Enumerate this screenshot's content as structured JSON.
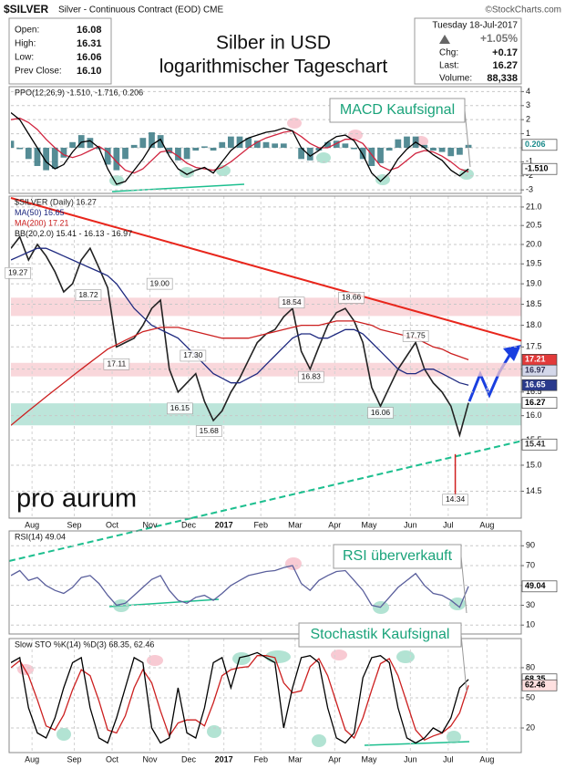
{
  "header": {
    "ticker": "$SILVER",
    "description": "Silver - Continuous Contract (EOD) CME",
    "source": "©StockCharts.com",
    "title": [
      "Silber in USD",
      "logarithmischer Tageschart"
    ],
    "fields": [
      {
        "label": "Open:",
        "value": "16.08"
      },
      {
        "label": "High:",
        "value": "16.31"
      },
      {
        "label": "Low:",
        "value": "16.06"
      },
      {
        "label": "Prev Close:",
        "value": "16.10"
      }
    ],
    "date": "Tuesday 18-Jul-2017",
    "change_pct": "+1.05%",
    "stats": [
      {
        "label": "Chg:",
        "value": "+0.17"
      },
      {
        "label": "Last:",
        "value": "16.27"
      },
      {
        "label": "Volume:",
        "value": "88,338"
      }
    ]
  },
  "chart_data": [
    {
      "type": "line",
      "legend": "PPO(12,26,9) -1.510, -1.716, 0.206",
      "annotation": "MACD Kaufsignal",
      "xlim": [
        0,
        58
      ],
      "ylim": [
        -3.25,
        4.35
      ],
      "yticks": [
        4,
        3,
        2,
        1,
        0,
        -1,
        -2,
        -3
      ],
      "grid": true,
      "series": [
        {
          "style": "bar",
          "color": "#2b6f7a",
          "values": [
            0.5,
            -0.1,
            -0.8,
            -1.3,
            -1.6,
            -1.5,
            -0.7,
            0.4,
            0.9,
            0.7,
            -0.1,
            -1.2,
            -1.6,
            -0.8,
            0.2,
            0.7,
            1.1,
            0.9,
            -0.4,
            -0.9,
            -0.8,
            -0.2,
            0.1,
            -0.2,
            0.4,
            0.8,
            0.8,
            0.7,
            0.5,
            0.4,
            0.3,
            0.3,
            0.0,
            -0.8,
            -0.9,
            -0.2,
            0.4,
            0.5,
            0.3,
            -0.1,
            -0.8,
            -1.3,
            -1.1,
            -0.2,
            0.6,
            0.8,
            0.8,
            0.2,
            -0.2,
            -0.3,
            -0.6,
            -0.5,
            0.206
          ]
        },
        {
          "style": "line",
          "color": "#d0243f",
          "values": [
            2.0,
            2.1,
            1.8,
            1.3,
            0.6,
            0.0,
            -0.5,
            -0.7,
            -0.5,
            -0.2,
            0.1,
            -0.3,
            -1.0,
            -1.6,
            -1.8,
            -1.5,
            -0.9,
            -0.3,
            -0.2,
            -0.6,
            -1.1,
            -1.4,
            -1.5,
            -1.6,
            -1.4,
            -1.0,
            -0.5,
            0.0,
            0.4,
            0.7,
            0.9,
            1.1,
            1.2,
            0.8,
            0.3,
            0.0,
            0.0,
            0.3,
            0.6,
            0.6,
            0.3,
            -0.5,
            -1.3,
            -1.6,
            -1.4,
            -0.9,
            -0.4,
            -0.2,
            -0.3,
            -0.6,
            -1.0,
            -1.5,
            -1.716
          ]
        },
        {
          "style": "line",
          "color": "#000000",
          "values": [
            2.5,
            2.0,
            1.0,
            0,
            -1.0,
            -1.5,
            -1.2,
            -0.3,
            0.4,
            0.5,
            0,
            -1.5,
            -2.6,
            -2.4,
            -1.6,
            -0.8,
            0.2,
            0.6,
            -0.6,
            -1.5,
            -1.9,
            -1.6,
            -1.4,
            -1.8,
            -1.0,
            -0.2,
            0.3,
            0.7,
            0.9,
            1.1,
            1.2,
            1.4,
            1.2,
            0.0,
            -0.6,
            -0.2,
            0.4,
            0.8,
            0.9,
            0.5,
            -0.5,
            -1.8,
            -2.4,
            -1.8,
            -0.8,
            -0.1,
            0.4,
            0.0,
            -0.5,
            -0.9,
            -1.6,
            -2.0,
            -1.51
          ]
        }
      ],
      "tags": [
        {
          "value": 0.206,
          "color": "#ffffff",
          "text_color": "#1a8a8a"
        },
        {
          "value": -1.51,
          "label": "-1.510",
          "color": "#ffffff",
          "text_color": "#000000"
        }
      ]
    },
    {
      "type": "line",
      "log_scale": true,
      "logo": "pro aurum",
      "bands_label": "BB(20,2.0) 15.41 - 16.13 - 16.97",
      "xlim": [
        0,
        58
      ],
      "ylim": [
        14.0,
        21.3
      ],
      "grid": true,
      "yticks": [
        {
          "value": 21,
          "label": "21.0"
        },
        20.5,
        {
          "value": 20,
          "label": "20.0"
        },
        19.5,
        {
          "value": 19,
          "label": "19.0"
        },
        18.5,
        {
          "value": 18,
          "label": "18.0"
        },
        17.5,
        {
          "value": 17,
          "label": "17.0"
        },
        16.5,
        {
          "value": 16,
          "label": "16.0"
        },
        15.5,
        {
          "value": 15,
          "label": "15.0"
        },
        14.5
      ],
      "xticks": [
        {
          "value": 2.4,
          "label": "Aug"
        },
        {
          "value": 7.2,
          "label": "Sep"
        },
        {
          "value": 11.5,
          "label": "Oct"
        },
        {
          "value": 15.8,
          "label": "Nov"
        },
        {
          "value": 20.2,
          "label": "Dec"
        },
        {
          "value": 24.2,
          "label": "2017"
        },
        {
          "value": 28.4,
          "label": "Feb"
        },
        {
          "value": 32.3,
          "label": "Mar"
        },
        {
          "value": 36.8,
          "label": "Apr"
        },
        {
          "value": 40.7,
          "label": "May"
        },
        {
          "value": 45.4,
          "label": "Jun"
        },
        {
          "value": 49.7,
          "label": "Jul"
        },
        {
          "value": 54.1,
          "label": "Aug"
        }
      ],
      "zones": [
        {
          "from": 18.22,
          "to": 18.66,
          "color": "#f7c9cf"
        },
        {
          "from": 16.84,
          "to": 17.14,
          "color": "#f7c9cf"
        },
        {
          "from": 15.8,
          "to": 16.26,
          "color": "#a6dccd"
        }
      ],
      "series": [
        {
          "name": "$SILVER (Daily) 16.27",
          "style": "line",
          "color": "#222222",
          "values": [
            19.9,
            20.2,
            19.6,
            20.0,
            19.7,
            19.3,
            18.8,
            19.0,
            19.6,
            19.9,
            19.4,
            18.9,
            17.5,
            17.6,
            17.7,
            18.0,
            18.4,
            18.6,
            17.0,
            16.5,
            16.7,
            16.9,
            16.3,
            15.9,
            16.1,
            16.5,
            16.8,
            17.2,
            17.6,
            17.8,
            17.9,
            18.2,
            18.4,
            17.4,
            17.0,
            17.5,
            18.0,
            18.3,
            18.4,
            18.1,
            17.6,
            16.6,
            16.2,
            16.6,
            17.0,
            17.3,
            17.6,
            17.0,
            16.7,
            16.5,
            16.2,
            15.6,
            16.27
          ]
        },
        {
          "name": "MA(50) 16.65",
          "style": "line",
          "color": "#1f2a80",
          "values": [
            19.6,
            19.7,
            19.8,
            19.9,
            19.9,
            19.8,
            19.7,
            19.6,
            19.5,
            19.4,
            19.3,
            19.2,
            19.0,
            18.7,
            18.4,
            18.2,
            18.0,
            17.9,
            17.8,
            17.7,
            17.5,
            17.3,
            17.1,
            16.9,
            16.8,
            16.7,
            16.7,
            16.8,
            16.9,
            17.1,
            17.3,
            17.5,
            17.7,
            17.8,
            17.8,
            17.7,
            17.7,
            17.8,
            17.9,
            17.9,
            17.8,
            17.6,
            17.4,
            17.2,
            17.0,
            16.9,
            16.9,
            17.0,
            17.0,
            16.9,
            16.8,
            16.7,
            16.65
          ]
        },
        {
          "name": "MA(200) 17.21",
          "style": "line",
          "color": "#cc1f1f",
          "values": [
            15.8,
            15.95,
            16.1,
            16.25,
            16.4,
            16.55,
            16.7,
            16.85,
            17.0,
            17.15,
            17.3,
            17.45,
            17.55,
            17.65,
            17.75,
            17.85,
            17.9,
            17.95,
            17.95,
            17.95,
            17.9,
            17.85,
            17.8,
            17.75,
            17.7,
            17.7,
            17.7,
            17.7,
            17.75,
            17.8,
            17.85,
            17.9,
            17.95,
            18.0,
            18.0,
            18.0,
            18.05,
            18.1,
            18.1,
            18.1,
            18.05,
            18.0,
            17.9,
            17.85,
            17.8,
            17.75,
            17.7,
            17.6,
            17.5,
            17.45,
            17.35,
            17.28,
            17.21
          ]
        }
      ],
      "peaks": {
        "x": [
          0.8,
          8.8,
          12,
          16.9,
          20.7,
          19.2,
          22.5,
          31.9,
          34.1,
          38.7,
          42,
          46,
          50.5
        ],
        "values": [
          19.27,
          18.72,
          17.11,
          19,
          17.3,
          16.15,
          15.68,
          18.54,
          16.83,
          18.66,
          16.06,
          17.75,
          14.34
        ],
        "value_labels": [
          "19.27",
          "18.72",
          "17.11",
          "19.00",
          "17.30",
          "16.15",
          "15.68",
          "18.54",
          "16.83",
          "18.66",
          "16.06",
          "17.75",
          "14.34"
        ]
      },
      "trendlines": [
        {
          "points": [
            [
              0,
              21.25
            ],
            [
              58,
              17.64
            ]
          ],
          "color": "#e8261c",
          "dashed": false
        },
        {
          "points": [
            [
              20.5,
              14.0
            ],
            [
              58,
              15.48
            ]
          ],
          "color": "#1dbf8f",
          "dashed": true
        }
      ],
      "tags": [
        {
          "value": 17.21,
          "color": "#e23a3a",
          "text_color": "#ffffff"
        },
        {
          "value": 16.97,
          "color": "#d4d8ea",
          "text_color": "#333355"
        },
        {
          "value": 16.65,
          "color": "#2a3a8c",
          "text_color": "#ffffff"
        },
        {
          "value": 16.27,
          "color": "#ffffff",
          "text_color": "#000000"
        },
        {
          "value": 15.41,
          "color": "#ffffff",
          "text_color": "#333333"
        }
      ]
    },
    {
      "type": "line",
      "legend": "RSI(14) 49.04",
      "annotation": "RSI überverkauft",
      "xlim": [
        0,
        58
      ],
      "ylim": [
        1,
        105
      ],
      "yticks": [
        90,
        70,
        50,
        30,
        10
      ],
      "grid": true,
      "series": [
        {
          "style": "line",
          "color": "#5a5f9c",
          "values": [
            60,
            65,
            55,
            58,
            50,
            45,
            42,
            48,
            58,
            60,
            52,
            40,
            30,
            32,
            40,
            48,
            56,
            60,
            45,
            35,
            32,
            38,
            40,
            35,
            42,
            50,
            55,
            60,
            62,
            64,
            65,
            68,
            70,
            52,
            45,
            55,
            60,
            64,
            65,
            55,
            45,
            30,
            28,
            38,
            48,
            55,
            62,
            50,
            42,
            40,
            35,
            28,
            49.04
          ]
        }
      ],
      "tags": [
        {
          "value": 49.04,
          "color": "#ffffff",
          "text_color": "#000000"
        }
      ]
    },
    {
      "type": "line",
      "legend": "Slow STO %K(14) %D(3) 68.35, 62.46",
      "annotation": "Stochastik Kaufsignal",
      "xlim": [
        0,
        58
      ],
      "ylim": [
        -4.5,
        109
      ],
      "yticks": [
        80,
        50,
        20
      ],
      "grid": true,
      "xticks": [
        {
          "value": 2.4,
          "label": "Aug"
        },
        {
          "value": 7.2,
          "label": "Sep"
        },
        {
          "value": 11.5,
          "label": "Oct"
        },
        {
          "value": 15.8,
          "label": "Nov"
        },
        {
          "value": 20.2,
          "label": "Dec"
        },
        {
          "value": 24.2,
          "label": "2017"
        },
        {
          "value": 28.4,
          "label": "Feb"
        },
        {
          "value": 32.3,
          "label": "Mar"
        },
        {
          "value": 36.8,
          "label": "Apr"
        },
        {
          "value": 40.7,
          "label": "May"
        },
        {
          "value": 45.4,
          "label": "Jun"
        },
        {
          "value": 49.7,
          "label": "Jul"
        },
        {
          "value": 54.1,
          "label": "Aug"
        }
      ],
      "series": [
        {
          "style": "line",
          "color": "#cc1f1f",
          "values": [
            80,
            87,
            72,
            48,
            22,
            18,
            33,
            58,
            78,
            72,
            47,
            18,
            15,
            32,
            60,
            78,
            65,
            37,
            12,
            25,
            28,
            28,
            22,
            45,
            72,
            78,
            80,
            81,
            92,
            92,
            90,
            65,
            55,
            57,
            81,
            89,
            72,
            45,
            18,
            10,
            30,
            58,
            84,
            89,
            72,
            45,
            18,
            8,
            12,
            15,
            22,
            35,
            62.46
          ]
        },
        {
          "style": "line",
          "color": "#000000",
          "values": [
            85,
            90,
            40,
            15,
            10,
            30,
            60,
            85,
            90,
            40,
            10,
            5,
            30,
            60,
            90,
            85,
            20,
            5,
            10,
            60,
            15,
            10,
            40,
            85,
            90,
            60,
            90,
            92,
            95,
            90,
            85,
            20,
            60,
            90,
            92,
            85,
            40,
            10,
            5,
            15,
            70,
            90,
            92,
            85,
            40,
            10,
            5,
            10,
            20,
            15,
            30,
            60,
            68.35
          ]
        }
      ],
      "tags": [
        {
          "value": 68.35,
          "color": "#ffffff",
          "text_color": "#000000"
        },
        {
          "value": 62.46,
          "color": "#ffe0e0",
          "text_color": "#000000"
        }
      ]
    }
  ]
}
